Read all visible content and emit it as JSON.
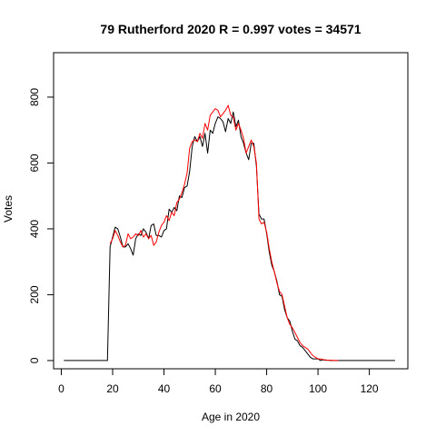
{
  "chart_data": {
    "type": "line",
    "title": "79 Rutherford 2020 R = 0.997 votes = 34571",
    "xlabel": "Age in 2020",
    "ylabel": "Votes",
    "xlim": [
      -3,
      135
    ],
    "ylim": [
      -25,
      935
    ],
    "x_ticks": [
      0,
      20,
      40,
      60,
      80,
      100,
      120
    ],
    "y_ticks": [
      0,
      200,
      400,
      600,
      800
    ],
    "grid": false,
    "series": [
      {
        "color": "#000000",
        "x": [
          1,
          2,
          3,
          4,
          5,
          6,
          7,
          8,
          9,
          10,
          11,
          12,
          13,
          14,
          15,
          16,
          17,
          18,
          19,
          20,
          21,
          22,
          23,
          24,
          25,
          26,
          27,
          28,
          29,
          30,
          31,
          32,
          33,
          34,
          35,
          36,
          37,
          38,
          39,
          40,
          41,
          42,
          43,
          44,
          45,
          46,
          47,
          48,
          49,
          50,
          51,
          52,
          53,
          54,
          55,
          56,
          57,
          58,
          59,
          60,
          61,
          62,
          63,
          64,
          65,
          66,
          67,
          68,
          69,
          70,
          71,
          72,
          73,
          74,
          75,
          76,
          77,
          78,
          79,
          80,
          81,
          82,
          83,
          84,
          85,
          86,
          87,
          88,
          89,
          90,
          91,
          92,
          93,
          94,
          95,
          96,
          97,
          98,
          99,
          100,
          101,
          102,
          103,
          104,
          105,
          106,
          107,
          108,
          109,
          110,
          111,
          112,
          113,
          114,
          115,
          116,
          117,
          118,
          119,
          120,
          121,
          122,
          123,
          124,
          125,
          126,
          127,
          128,
          129,
          130
        ],
        "y": [
          0,
          0,
          0,
          0,
          0,
          0,
          0,
          0,
          0,
          0,
          0,
          0,
          0,
          0,
          0,
          0,
          0,
          0,
          345,
          375,
          405,
          400,
          375,
          345,
          345,
          355,
          340,
          320,
          370,
          385,
          380,
          400,
          390,
          370,
          410,
          415,
          380,
          380,
          375,
          395,
          400,
          460,
          450,
          465,
          455,
          500,
          495,
          525,
          530,
          575,
          650,
          680,
          665,
          680,
          650,
          690,
          630,
          700,
          690,
          720,
          740,
          735,
          725,
          695,
          735,
          720,
          755,
          710,
          730,
          680,
          660,
          630,
          610,
          660,
          660,
          590,
          445,
          430,
          430,
          385,
          330,
          290,
          270,
          240,
          200,
          195,
          155,
          130,
          120,
          90,
          65,
          60,
          45,
          40,
          30,
          20,
          10,
          5,
          5,
          5,
          0,
          2,
          1,
          1,
          0,
          0,
          0,
          0,
          0,
          0,
          0,
          0,
          0,
          0,
          0,
          0,
          0,
          0,
          0,
          0,
          0,
          0,
          0,
          0,
          0,
          0,
          0,
          0,
          0,
          0
        ]
      },
      {
        "color": "#ff0000",
        "x": [
          19,
          20,
          21,
          22,
          23,
          24,
          25,
          26,
          27,
          28,
          29,
          30,
          31,
          32,
          33,
          34,
          35,
          36,
          37,
          38,
          39,
          40,
          41,
          42,
          43,
          44,
          45,
          46,
          47,
          48,
          49,
          50,
          51,
          52,
          53,
          54,
          55,
          56,
          57,
          58,
          59,
          60,
          61,
          62,
          63,
          64,
          65,
          66,
          67,
          68,
          69,
          70,
          71,
          72,
          73,
          74,
          75,
          76,
          77,
          78,
          79,
          80,
          81,
          82,
          83,
          84,
          85,
          86,
          87,
          88,
          89,
          90,
          91,
          92,
          93,
          94,
          95,
          96,
          97,
          98,
          99,
          100,
          101,
          102,
          103,
          104,
          105,
          106,
          107,
          108
        ],
        "y": [
          355,
          370,
          395,
          380,
          360,
          345,
          350,
          385,
          370,
          375,
          385,
          380,
          395,
          375,
          385,
          370,
          380,
          350,
          360,
          390,
          410,
          420,
          440,
          425,
          450,
          440,
          480,
          490,
          510,
          535,
          570,
          645,
          665,
          670,
          665,
          690,
          675,
          720,
          700,
          745,
          755,
          765,
          760,
          740,
          750,
          760,
          775,
          745,
          740,
          700,
          720,
          700,
          675,
          630,
          650,
          670,
          650,
          600,
          430,
          415,
          420,
          390,
          340,
          300,
          270,
          235,
          210,
          200,
          165,
          130,
          110,
          100,
          85,
          70,
          55,
          45,
          40,
          35,
          25,
          15,
          10,
          5,
          5,
          3,
          2,
          1,
          1,
          0,
          0,
          0
        ]
      }
    ]
  }
}
